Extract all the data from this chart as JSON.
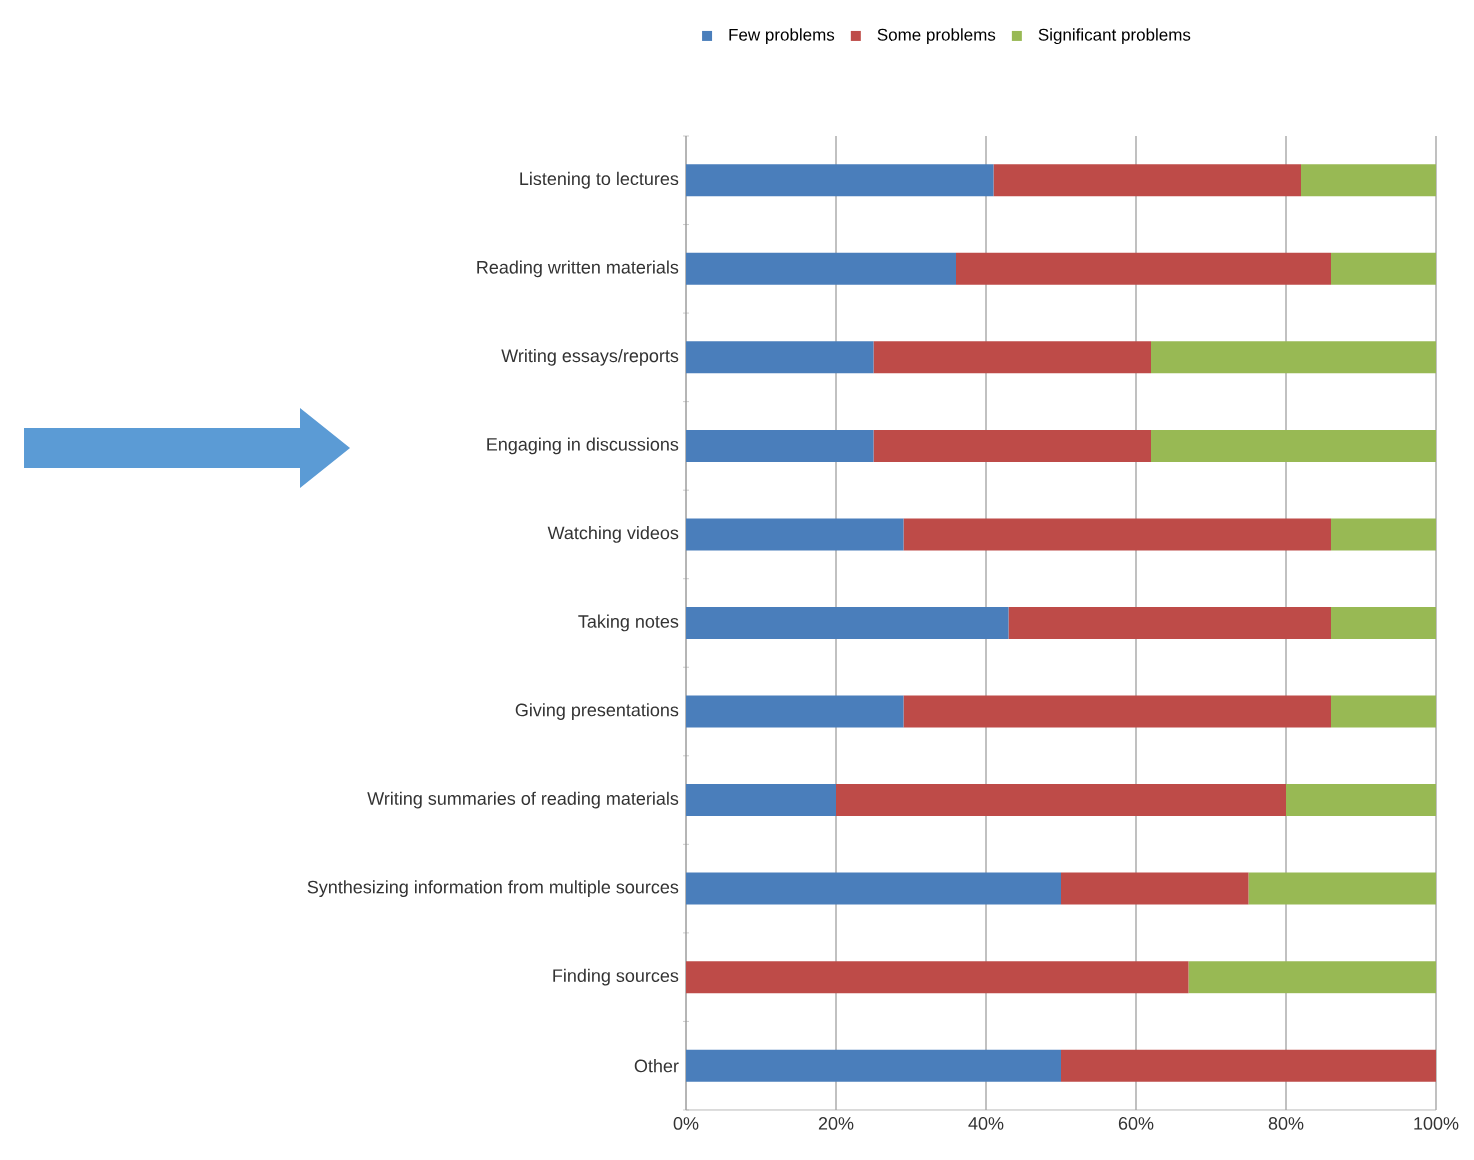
{
  "chart_data": {
    "type": "bar",
    "orientation": "horizontal",
    "stacked": true,
    "categories": [
      "Listening to lectures",
      "Reading written materials",
      "Writing essays/reports",
      "Engaging in discussions",
      "Watching videos",
      "Taking notes",
      "Giving presentations",
      "Writing summaries of reading materials",
      "Synthesizing information from multiple sources",
      "Finding sources",
      "Other"
    ],
    "series": [
      {
        "name": "Few problems",
        "color": "#4a7ebb",
        "values": [
          41,
          36,
          25,
          25,
          29,
          43,
          29,
          20,
          50,
          0,
          50
        ]
      },
      {
        "name": "Some problems",
        "color": "#be4b48",
        "values": [
          41,
          50,
          37,
          37,
          57,
          43,
          57,
          60,
          25,
          67,
          50
        ]
      },
      {
        "name": "Significant problems",
        "color": "#98b954",
        "values": [
          18,
          14,
          38,
          38,
          14,
          14,
          14,
          20,
          25,
          33,
          0
        ]
      }
    ],
    "xlim": [
      0,
      100
    ],
    "xticks": [
      {
        "value": 0,
        "label": "0%"
      },
      {
        "value": 20,
        "label": "20%"
      },
      {
        "value": 40,
        "label": "40%"
      },
      {
        "value": 60,
        "label": "60%"
      },
      {
        "value": 80,
        "label": "80%"
      },
      {
        "value": 100,
        "label": "100%"
      }
    ],
    "grid": "x",
    "legend": "top"
  }
}
